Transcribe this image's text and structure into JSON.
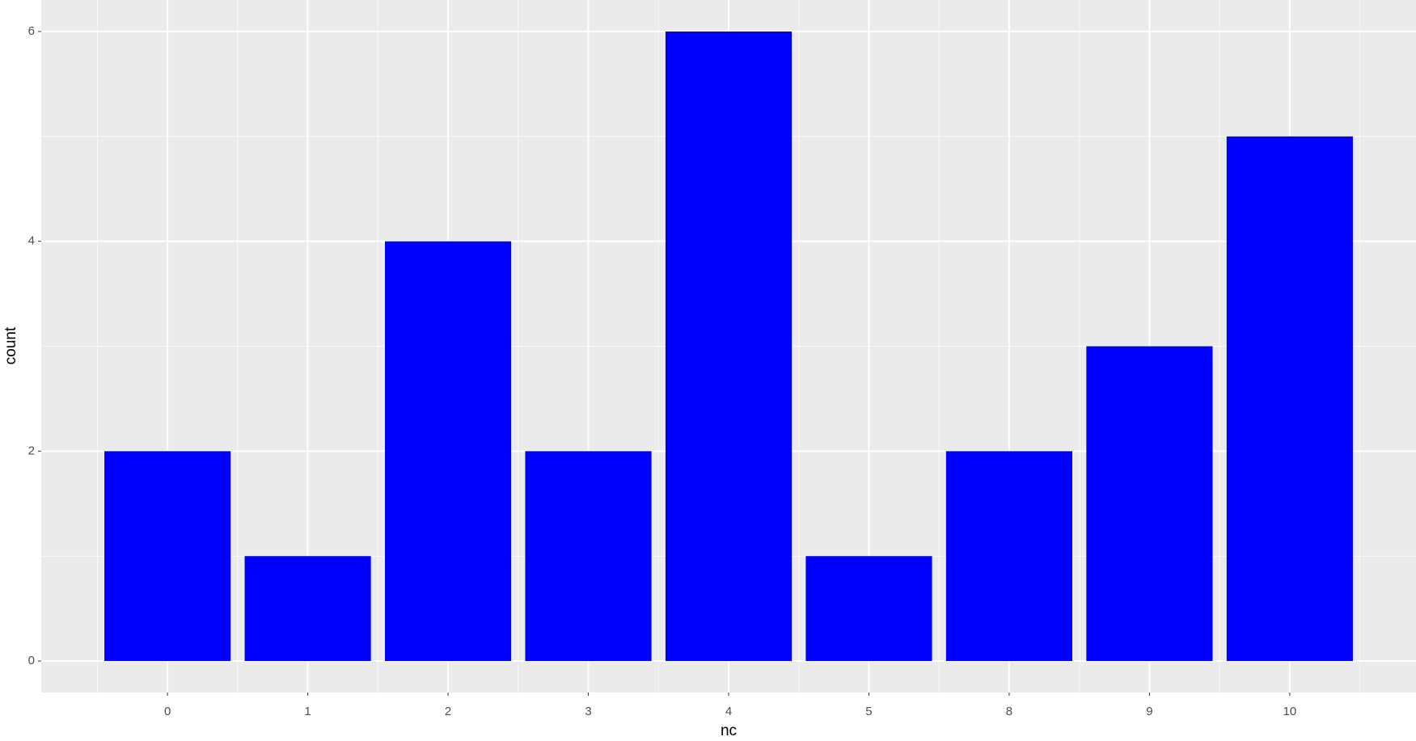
{
  "chart_data": {
    "type": "bar",
    "x_label": "nc",
    "y_label": "count",
    "categories": [
      "0",
      "1",
      "2",
      "3",
      "4",
      "5",
      "8",
      "9",
      "10"
    ],
    "values": [
      2,
      1,
      4,
      2,
      6,
      1,
      2,
      3,
      5
    ],
    "color": "#0000ff",
    "ylim": [
      -0.3,
      6.3
    ],
    "yticks": [
      0,
      2,
      4,
      6
    ],
    "grid": true
  }
}
